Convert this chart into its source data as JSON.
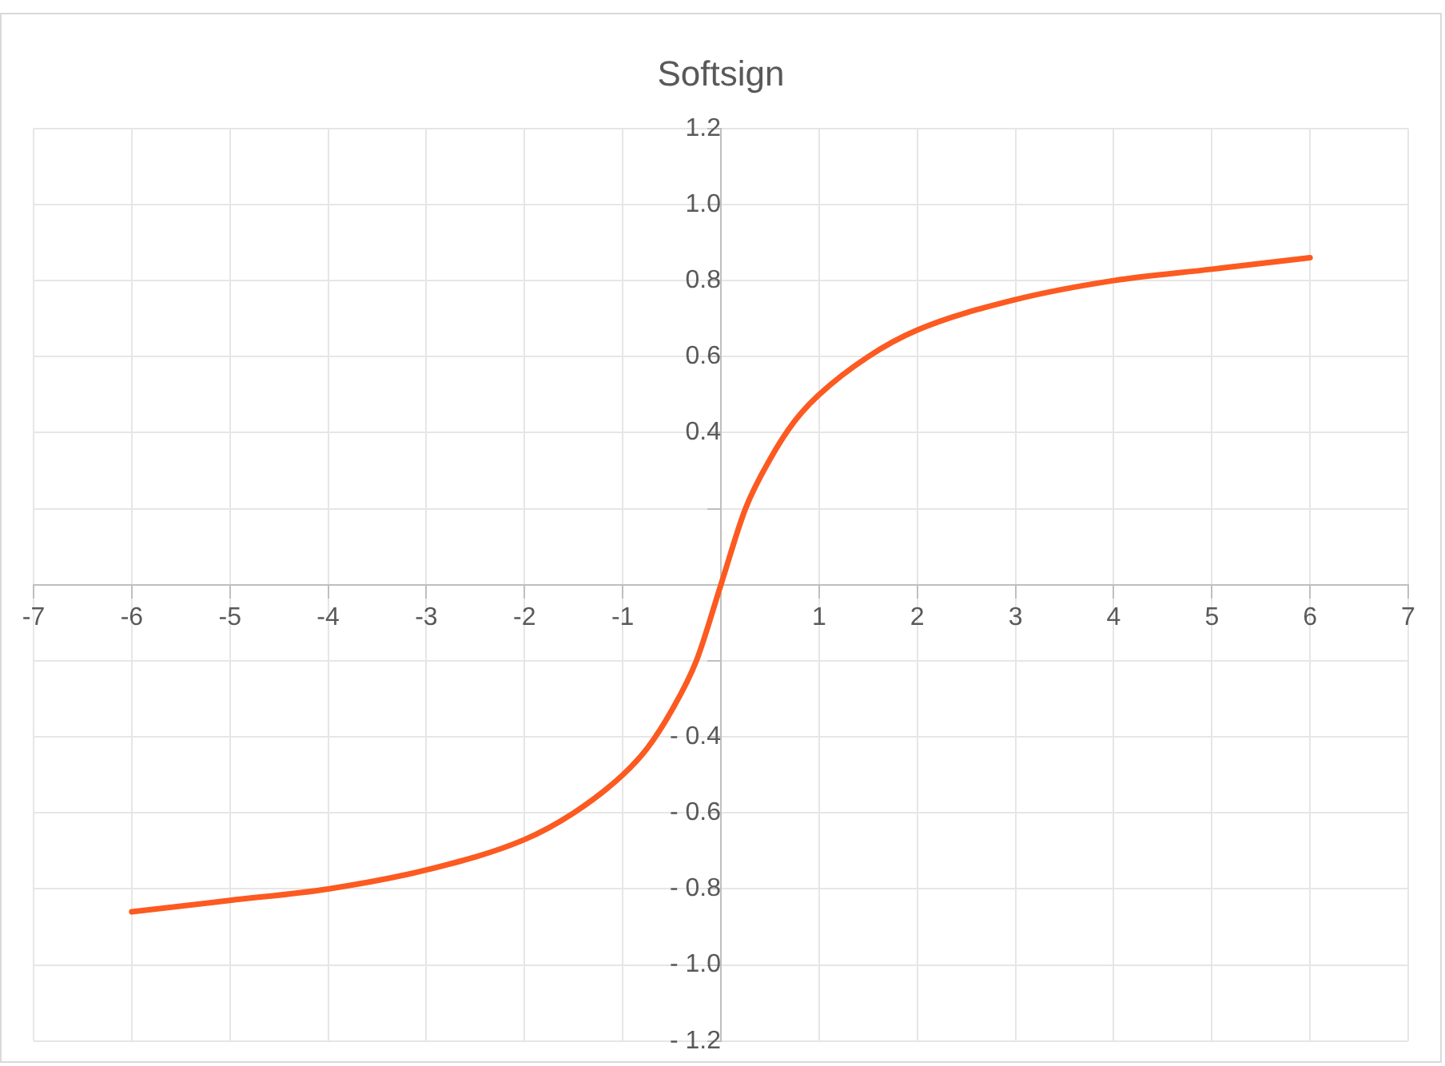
{
  "chart_data": {
    "type": "line",
    "title": "Softsign",
    "x": [
      -6,
      -5,
      -4,
      -3,
      -2,
      -1.5,
      -1,
      -0.75,
      -0.5,
      -0.25,
      0,
      0.25,
      0.5,
      0.75,
      1,
      1.5,
      2,
      3,
      4,
      5,
      6
    ],
    "series": [
      {
        "color": "#fc5a21",
        "values": [
          -0.86,
          -0.83,
          -0.8,
          -0.75,
          -0.67,
          -0.6,
          -0.5,
          -0.43,
          -0.33,
          -0.2,
          0,
          0.2,
          0.33,
          0.43,
          0.5,
          0.6,
          0.67,
          0.75,
          0.8,
          0.83,
          0.86
        ]
      }
    ],
    "xlim": [
      -7,
      7
    ],
    "xticks": [
      -7,
      -6,
      -5,
      -4,
      -3,
      -2,
      -1,
      {
        "value": 0,
        "label": null
      },
      1,
      2,
      3,
      4,
      5,
      6,
      7
    ],
    "ylim": [
      -1.2,
      1.2
    ],
    "yticks": [
      {
        "value": -1.2,
        "label": "- 1.2"
      },
      {
        "value": -1.0,
        "label": "- 1.0"
      },
      {
        "value": -0.8,
        "label": "- 0.8"
      },
      {
        "value": -0.6,
        "label": "- 0.6"
      },
      {
        "value": -0.4,
        "label": "- 0.4"
      },
      {
        "value": -0.2,
        "label": null
      },
      {
        "value": 0,
        "label": null
      },
      {
        "value": 0.2,
        "label": null
      },
      {
        "value": 0.4,
        "label": "0.4"
      },
      {
        "value": 0.6,
        "label": "0.6"
      },
      {
        "value": 0.8,
        "label": "0.8"
      },
      {
        "value": 1.0,
        "label": "1.0"
      },
      {
        "value": 1.2,
        "label": "1.2"
      }
    ],
    "grid": true,
    "marker": "none",
    "line_style": "solid"
  }
}
